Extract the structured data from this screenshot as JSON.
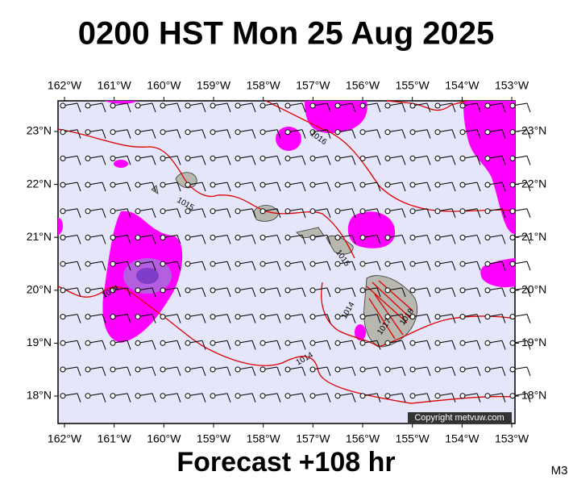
{
  "header": {
    "title": "0200 HST Mon 25 Aug 2025"
  },
  "map": {
    "lon_labels": [
      "162°W",
      "161°W",
      "160°W",
      "159°W",
      "158°W",
      "157°W",
      "156°W",
      "155°W",
      "154°W",
      "153°W"
    ],
    "lat_labels": [
      "23°N",
      "22°N",
      "21°N",
      "20°N",
      "19°N",
      "18°N"
    ],
    "isobar_labels": [
      "1016",
      "1015",
      "1015",
      "1004",
      "1014",
      "1017",
      "1018",
      "1014"
    ],
    "copyright": "Copyright metvuw.com"
  },
  "footer": {
    "caption": "Forecast +108 hr",
    "code": "M3"
  }
}
